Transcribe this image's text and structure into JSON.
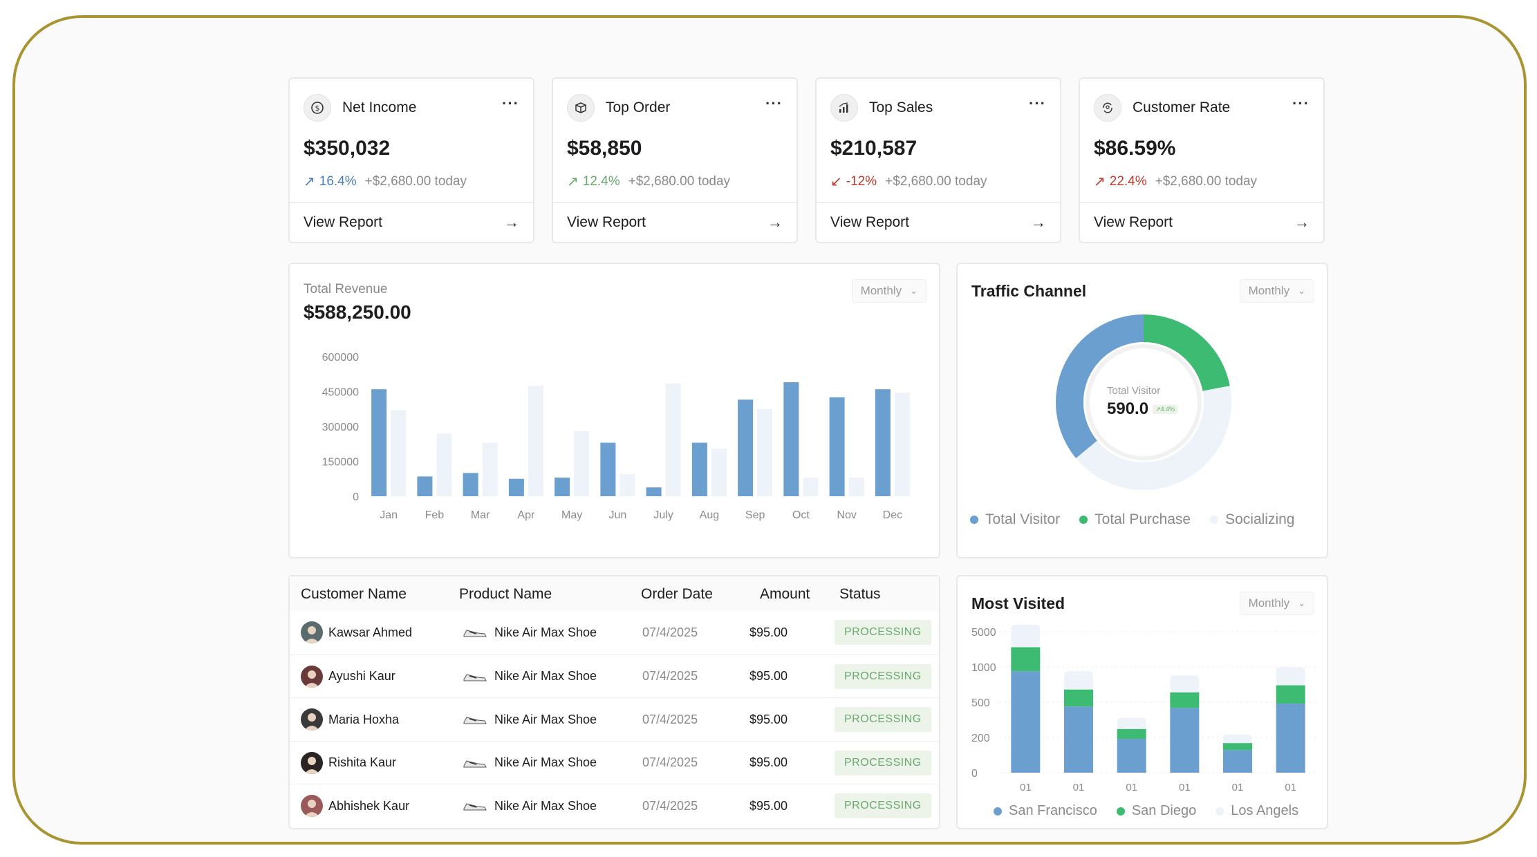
{
  "kpis": [
    {
      "title": "Net Income",
      "icon": "dollar-circle-icon",
      "value": "$350,032",
      "change": "16.4%",
      "direction": "up",
      "change_color": "#4a7fb8",
      "today": "+$2,680.00 today",
      "link": "View Report"
    },
    {
      "title": "Top Order",
      "icon": "box-icon",
      "value": "$58,850",
      "change": "12.4%",
      "direction": "up",
      "change_color": "#6aa86f",
      "today": "+$2,680.00 today",
      "link": "View Report"
    },
    {
      "title": "Top Sales",
      "icon": "bar-chart-icon",
      "value": "$210,587",
      "change": "-12%",
      "direction": "down",
      "change_color": "#c0392b",
      "today": "+$2,680.00 today",
      "link": "View Report"
    },
    {
      "title": "Customer Rate",
      "icon": "refresh-user-icon",
      "value": "$86.59%",
      "change": "22.4%",
      "direction": "up",
      "change_color": "#c0392b",
      "today": "+$2,680.00 today",
      "link": "View Report"
    }
  ],
  "revenue": {
    "label": "Total Revenue",
    "value": "$588,250.00",
    "period": "Monthly"
  },
  "traffic": {
    "title": "Traffic Channel",
    "period": "Monthly",
    "center_label": "Total Visitor",
    "center_value": "590.0",
    "center_badge": "↗4.4%",
    "legend": [
      {
        "name": "Total Visitor",
        "color": "#6a9fd0"
      },
      {
        "name": "Total Purchase",
        "color": "#3dbb73"
      },
      {
        "name": "Socializing",
        "color": "#eef3f9"
      }
    ]
  },
  "table": {
    "headers": [
      "Customer Name",
      "Product Name",
      "Order Date",
      "Amount",
      "Status"
    ],
    "rows": [
      {
        "customer": "Kawsar Ahmed",
        "product": "Nike Air Max Shoe",
        "date": "07/4/2025",
        "amount": "$95.00",
        "status": "PROCESSING"
      },
      {
        "customer": "Ayushi Kaur",
        "product": "Nike Air Max Shoe",
        "date": "07/4/2025",
        "amount": "$95.00",
        "status": "PROCESSING"
      },
      {
        "customer": "Maria Hoxha",
        "product": "Nike Air Max Shoe",
        "date": "07/4/2025",
        "amount": "$95.00",
        "status": "PROCESSING"
      },
      {
        "customer": "Rishita Kaur",
        "product": "Nike Air Max Shoe",
        "date": "07/4/2025",
        "amount": "$95.00",
        "status": "PROCESSING"
      },
      {
        "customer": "Abhishek Kaur",
        "product": "Nike Air Max Shoe",
        "date": "07/4/2025",
        "amount": "$95.00",
        "status": "PROCESSING"
      }
    ]
  },
  "most_visited": {
    "title": "Most Visited",
    "period": "Monthly",
    "legend": [
      {
        "name": "San Francisco",
        "color": "#6a9fd0"
      },
      {
        "name": "San Diego",
        "color": "#3dbb73"
      },
      {
        "name": "Los Angels",
        "color": "#eef3f9"
      }
    ]
  },
  "chart_data": [
    {
      "type": "bar",
      "title": "",
      "categories": [
        "Jan",
        "Feb",
        "Mar",
        "Apr",
        "May",
        "Jun",
        "July",
        "Aug",
        "Sep",
        "Oct",
        "Nov",
        "Dec"
      ],
      "yticks": [
        "600000",
        "450000",
        "300000",
        "150000",
        "0"
      ],
      "ylim": [
        0,
        600000
      ],
      "series": [
        {
          "color": "#6a9fd0",
          "values": [
            460000,
            85000,
            100000,
            75000,
            80000,
            230000,
            38000,
            230000,
            415000,
            490000,
            425000,
            460000
          ]
        },
        {
          "color": "#eef3f9",
          "values": [
            370000,
            270000,
            230000,
            475000,
            280000,
            95000,
            485000,
            205000,
            375000,
            80000,
            80000,
            445000
          ]
        }
      ],
      "legend": "none"
    },
    {
      "type": "pie",
      "title": "Traffic Channel",
      "labels": [
        "Total Visitor",
        "Total Purchase",
        "Socializing"
      ],
      "values": [
        36,
        22,
        42
      ],
      "colors": [
        "#6a9fd0",
        "#3dbb73",
        "#eef3f9"
      ],
      "legend": "bottom"
    },
    {
      "type": "bar",
      "stacked": true,
      "title": "Most Visited",
      "categories": [
        "01",
        "01",
        "01",
        "01",
        "01",
        "01"
      ],
      "yticks": [
        "5000",
        "1000",
        "500",
        "200",
        "0"
      ],
      "series": [
        {
          "name": "San Francisco",
          "color": "#6a9fd0",
          "values": [
            0.72,
            0.47,
            0.24,
            0.46,
            0.16,
            0.49
          ]
        },
        {
          "name": "San Diego",
          "color": "#3dbb73",
          "values": [
            0.17,
            0.12,
            0.07,
            0.11,
            0.05,
            0.13
          ]
        },
        {
          "name": "Los Angels",
          "color": "#eef3f9",
          "values": [
            0.16,
            0.13,
            0.08,
            0.12,
            0.06,
            0.13
          ]
        }
      ],
      "legend": "bottom"
    }
  ]
}
